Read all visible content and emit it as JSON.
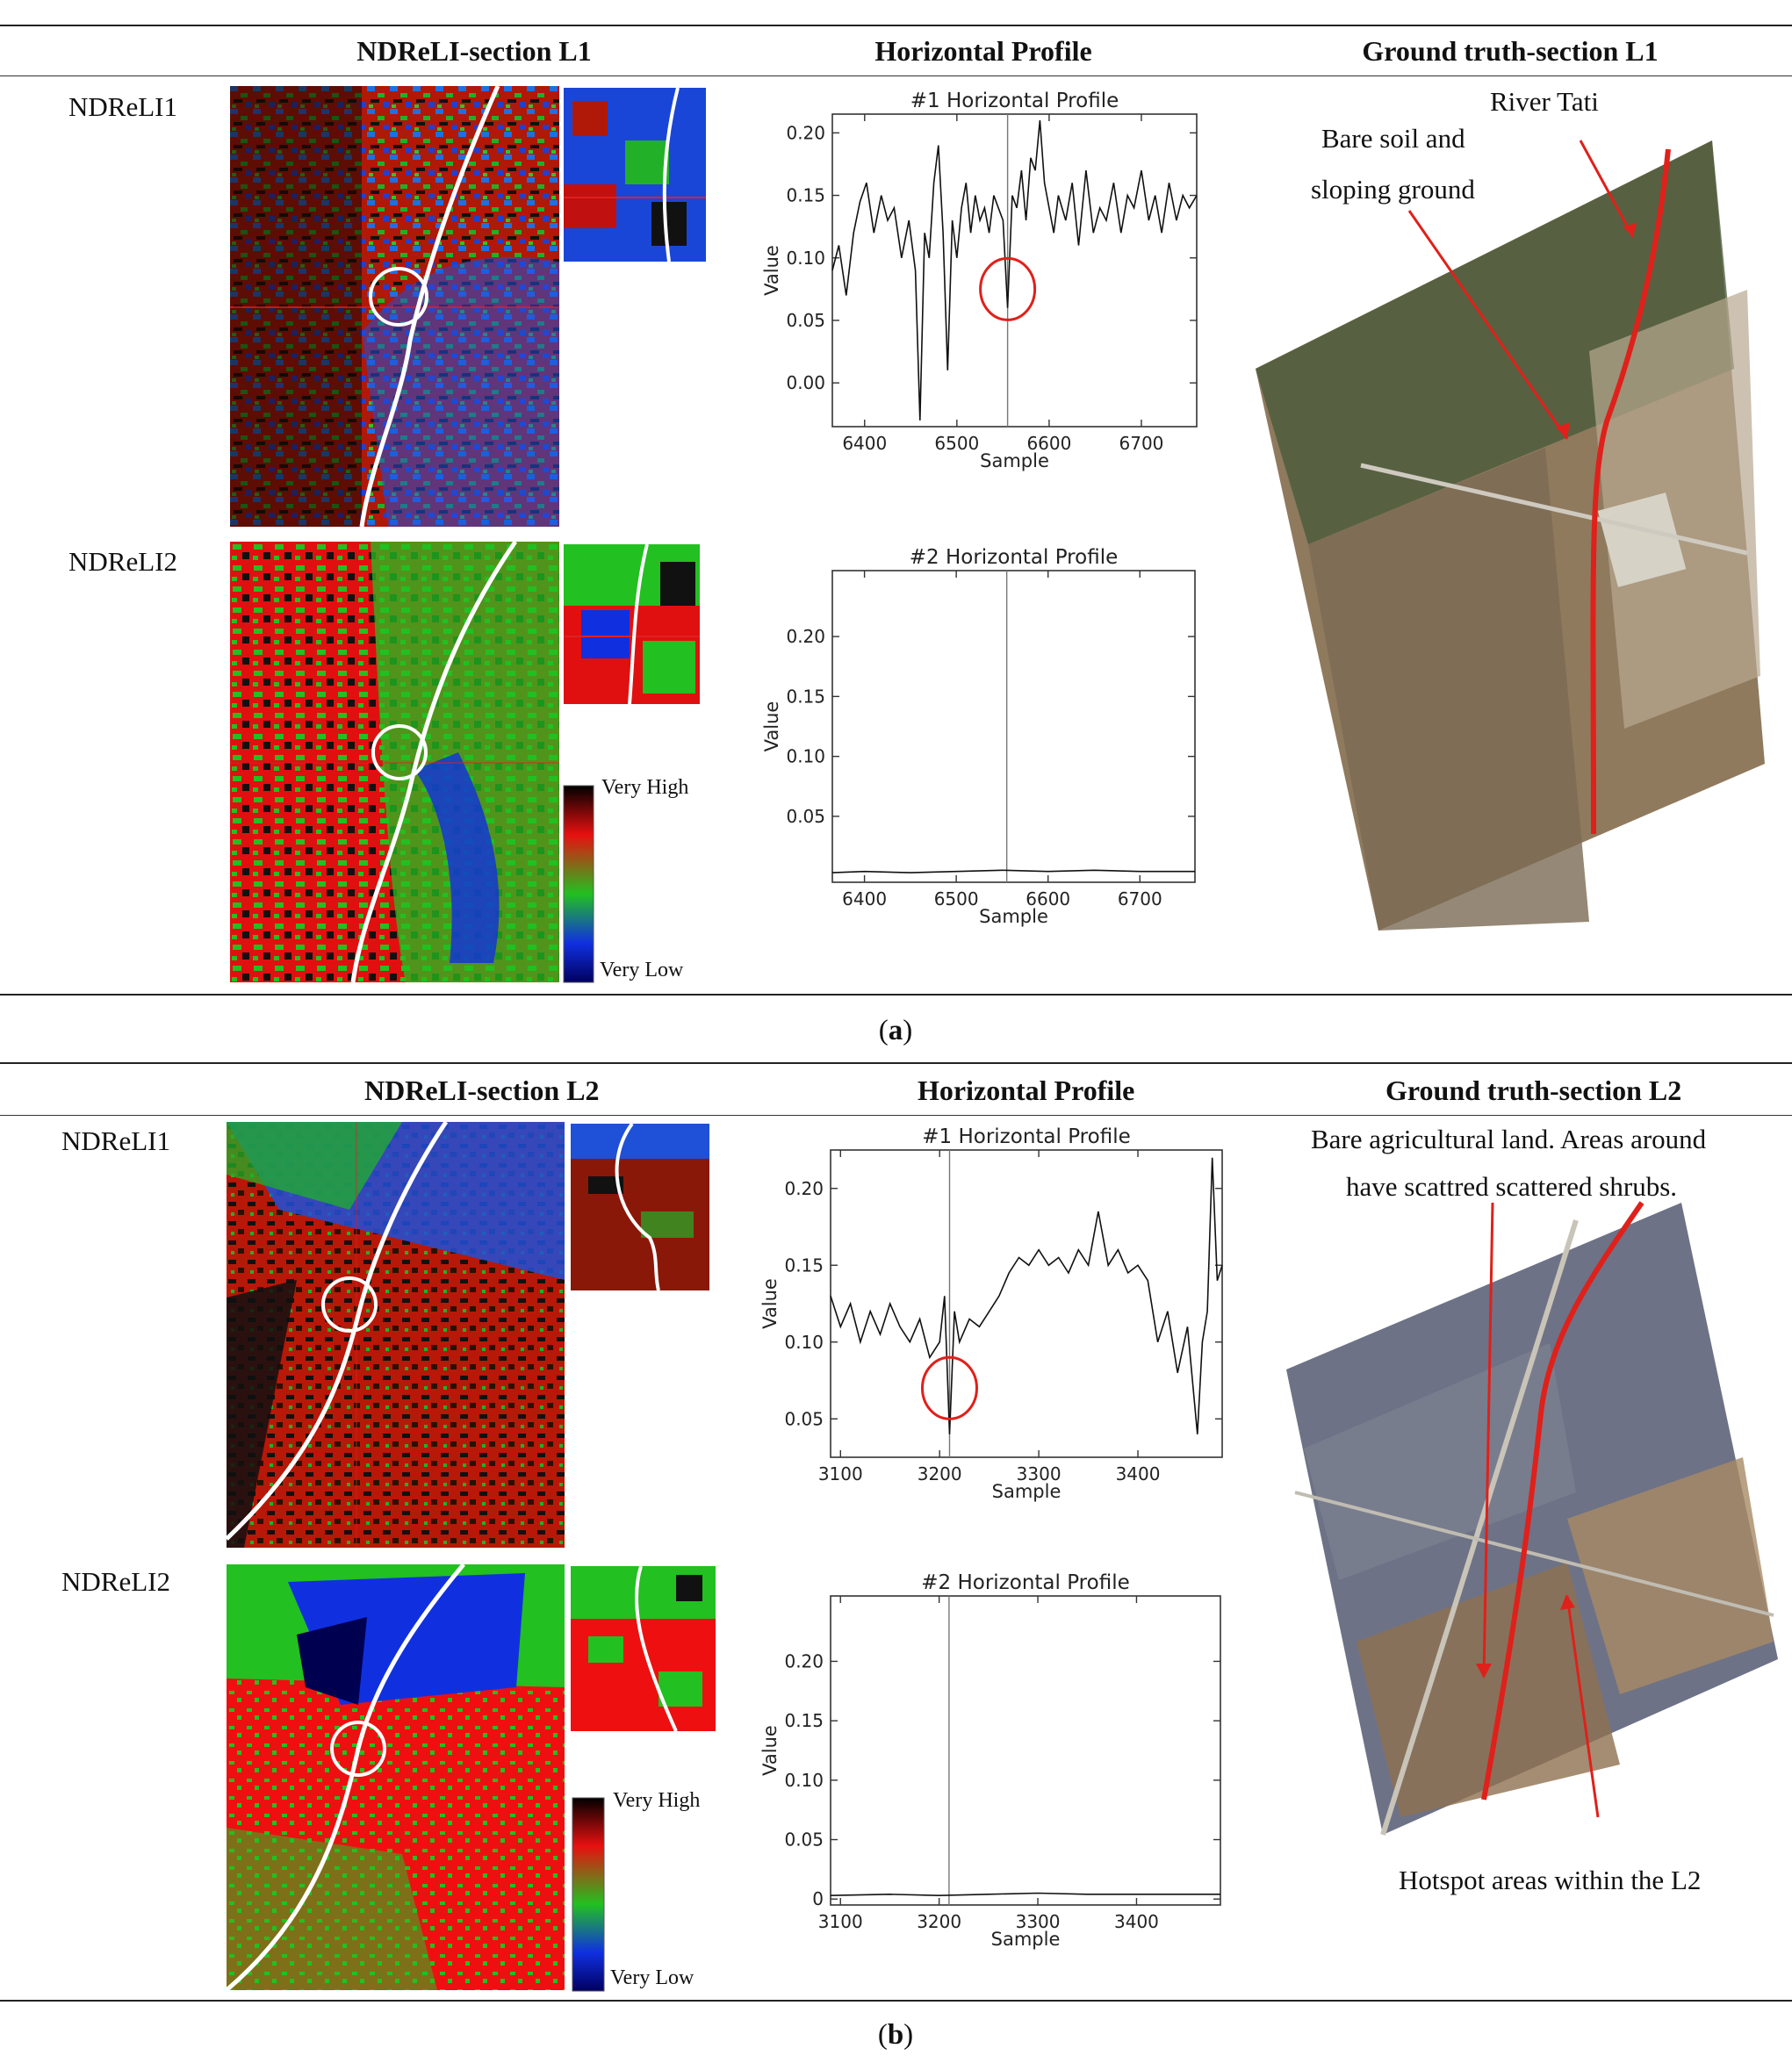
{
  "panel_a": {
    "caption_open": "(",
    "caption_letter": "a",
    "caption_close": ")",
    "header_index": "NDReLI-section L1",
    "header_profile": "Horizontal Profile",
    "header_truth": "Ground truth-section L1",
    "row1_label": "NDReLI1",
    "row2_label": "NDReLI2",
    "legend_high": "Very High",
    "legend_low": "Very Low",
    "truth_annotation_1": "River Tati",
    "truth_annotation_2_line1": "Bare soil and",
    "truth_annotation_2_line2": "sloping ground"
  },
  "panel_b": {
    "caption_open": "(",
    "caption_letter": "b",
    "caption_close": ")",
    "header_index": "NDReLI-section L2",
    "header_profile": "Horizontal Profile",
    "header_truth": "Ground truth-section L2",
    "row1_label": "NDReLI1",
    "row2_label": "NDReLI2",
    "legend_high": "Very High",
    "legend_low": "Very Low",
    "truth_annotation_1_line1": "Bare agricultural land. Areas around",
    "truth_annotation_1_line2": "have scattred scattered shrubs.",
    "truth_annotation_2": "Hotspot areas within the L2"
  },
  "colors": {
    "rule": "#222222",
    "marker_red": "#e0201a",
    "river_white": "#ffffff",
    "legend_gradient": [
      "#000000",
      "#e81010",
      "#22c020",
      "#1030e0",
      "#000060"
    ]
  },
  "chart_data": [
    {
      "id": "a1",
      "type": "line",
      "title": "#1 Horizontal Profile",
      "xlabel": "Sample",
      "ylabel": "Value",
      "xlim": [
        6365,
        6760
      ],
      "ylim": [
        -0.035,
        0.215
      ],
      "xticks": [
        6400,
        6500,
        6600,
        6700
      ],
      "yticks": [
        0.0,
        0.05,
        0.1,
        0.15,
        0.2
      ],
      "ytick_labels": [
        "0.00",
        "0.05",
        "0.10",
        "0.15",
        "0.20"
      ],
      "xtick_labels": [
        "6400",
        "6500",
        "6600",
        "6700"
      ],
      "marker_x": 6555,
      "circle": {
        "x": 6555,
        "y": 0.075
      },
      "x": [
        6365,
        6372,
        6380,
        6388,
        6395,
        6402,
        6410,
        6418,
        6425,
        6432,
        6440,
        6448,
        6455,
        6460,
        6465,
        6470,
        6475,
        6480,
        6485,
        6490,
        6495,
        6500,
        6505,
        6510,
        6515,
        6520,
        6525,
        6530,
        6535,
        6540,
        6545,
        6550,
        6555,
        6560,
        6565,
        6570,
        6575,
        6580,
        6585,
        6590,
        6595,
        6600,
        6605,
        6610,
        6618,
        6625,
        6632,
        6640,
        6648,
        6655,
        6662,
        6670,
        6678,
        6685,
        6692,
        6700,
        6708,
        6715,
        6722,
        6730,
        6738,
        6745,
        6752,
        6760
      ],
      "values": [
        0.09,
        0.11,
        0.07,
        0.12,
        0.145,
        0.16,
        0.12,
        0.15,
        0.13,
        0.14,
        0.1,
        0.13,
        0.09,
        -0.03,
        0.12,
        0.1,
        0.16,
        0.19,
        0.12,
        0.01,
        0.13,
        0.1,
        0.14,
        0.16,
        0.12,
        0.15,
        0.13,
        0.14,
        0.12,
        0.15,
        0.14,
        0.13,
        0.06,
        0.15,
        0.14,
        0.17,
        0.13,
        0.18,
        0.17,
        0.21,
        0.16,
        0.14,
        0.12,
        0.15,
        0.13,
        0.16,
        0.11,
        0.17,
        0.12,
        0.14,
        0.13,
        0.16,
        0.12,
        0.15,
        0.14,
        0.17,
        0.13,
        0.15,
        0.12,
        0.16,
        0.13,
        0.15,
        0.14,
        0.15
      ]
    },
    {
      "id": "a2",
      "type": "line",
      "title": "#2 Horizontal Profile",
      "xlabel": "Sample",
      "ylabel": "Value",
      "xlim": [
        6365,
        6760
      ],
      "ylim": [
        -0.005,
        0.255
      ],
      "xticks": [
        6400,
        6500,
        6600,
        6700
      ],
      "yticks": [
        0.05,
        0.1,
        0.15,
        0.2
      ],
      "ytick_labels": [
        "0.05",
        "0.10",
        "0.15",
        "0.20"
      ],
      "xtick_labels": [
        "6400",
        "6500",
        "6600",
        "6700"
      ],
      "marker_x": 6555,
      "x": [
        6365,
        6400,
        6450,
        6500,
        6550,
        6600,
        6650,
        6700,
        6760
      ],
      "values": [
        0.003,
        0.004,
        0.003,
        0.004,
        0.005,
        0.004,
        0.005,
        0.004,
        0.004
      ]
    },
    {
      "id": "b1",
      "type": "line",
      "title": "#1 Horizontal Profile",
      "xlabel": "Sample",
      "ylabel": "Value",
      "xlim": [
        3090,
        3485
      ],
      "ylim": [
        0.025,
        0.225
      ],
      "xticks": [
        3100,
        3200,
        3300,
        3400
      ],
      "yticks": [
        0.05,
        0.1,
        0.15,
        0.2
      ],
      "ytick_labels": [
        "0.05",
        "0.10",
        "0.15",
        "0.20"
      ],
      "xtick_labels": [
        "3100",
        "3200",
        "3300",
        "3400"
      ],
      "marker_x": 3210,
      "circle": {
        "x": 3210,
        "y": 0.07
      },
      "x": [
        3090,
        3100,
        3110,
        3120,
        3130,
        3140,
        3150,
        3160,
        3170,
        3180,
        3190,
        3200,
        3205,
        3210,
        3215,
        3220,
        3230,
        3240,
        3250,
        3260,
        3270,
        3280,
        3290,
        3300,
        3310,
        3320,
        3330,
        3340,
        3350,
        3360,
        3370,
        3380,
        3390,
        3400,
        3410,
        3420,
        3430,
        3440,
        3450,
        3460,
        3465,
        3470,
        3475,
        3480,
        3485
      ],
      "values": [
        0.13,
        0.11,
        0.125,
        0.1,
        0.12,
        0.105,
        0.125,
        0.11,
        0.1,
        0.115,
        0.09,
        0.1,
        0.13,
        0.04,
        0.12,
        0.1,
        0.115,
        0.11,
        0.12,
        0.13,
        0.145,
        0.155,
        0.15,
        0.16,
        0.15,
        0.155,
        0.145,
        0.16,
        0.15,
        0.185,
        0.15,
        0.16,
        0.145,
        0.15,
        0.14,
        0.1,
        0.12,
        0.08,
        0.11,
        0.04,
        0.1,
        0.12,
        0.22,
        0.14,
        0.15
      ]
    },
    {
      "id": "b2",
      "type": "line",
      "title": "#2 Horizontal Profile",
      "xlabel": "Sample",
      "ylabel": "Value",
      "xlim": [
        3090,
        3485
      ],
      "ylim": [
        -0.005,
        0.255
      ],
      "xticks": [
        3100,
        3200,
        3300,
        3400
      ],
      "yticks": [
        0,
        0.05,
        0.1,
        0.15,
        0.2
      ],
      "ytick_labels": [
        "0",
        "0.05",
        "0.10",
        "0.15",
        "0.20"
      ],
      "xtick_labels": [
        "3100",
        "3200",
        "3300",
        "3400"
      ],
      "marker_x": 3210,
      "x": [
        3090,
        3150,
        3200,
        3250,
        3300,
        3350,
        3400,
        3485
      ],
      "values": [
        0.003,
        0.004,
        0.003,
        0.004,
        0.005,
        0.004,
        0.004,
        0.004
      ]
    }
  ]
}
